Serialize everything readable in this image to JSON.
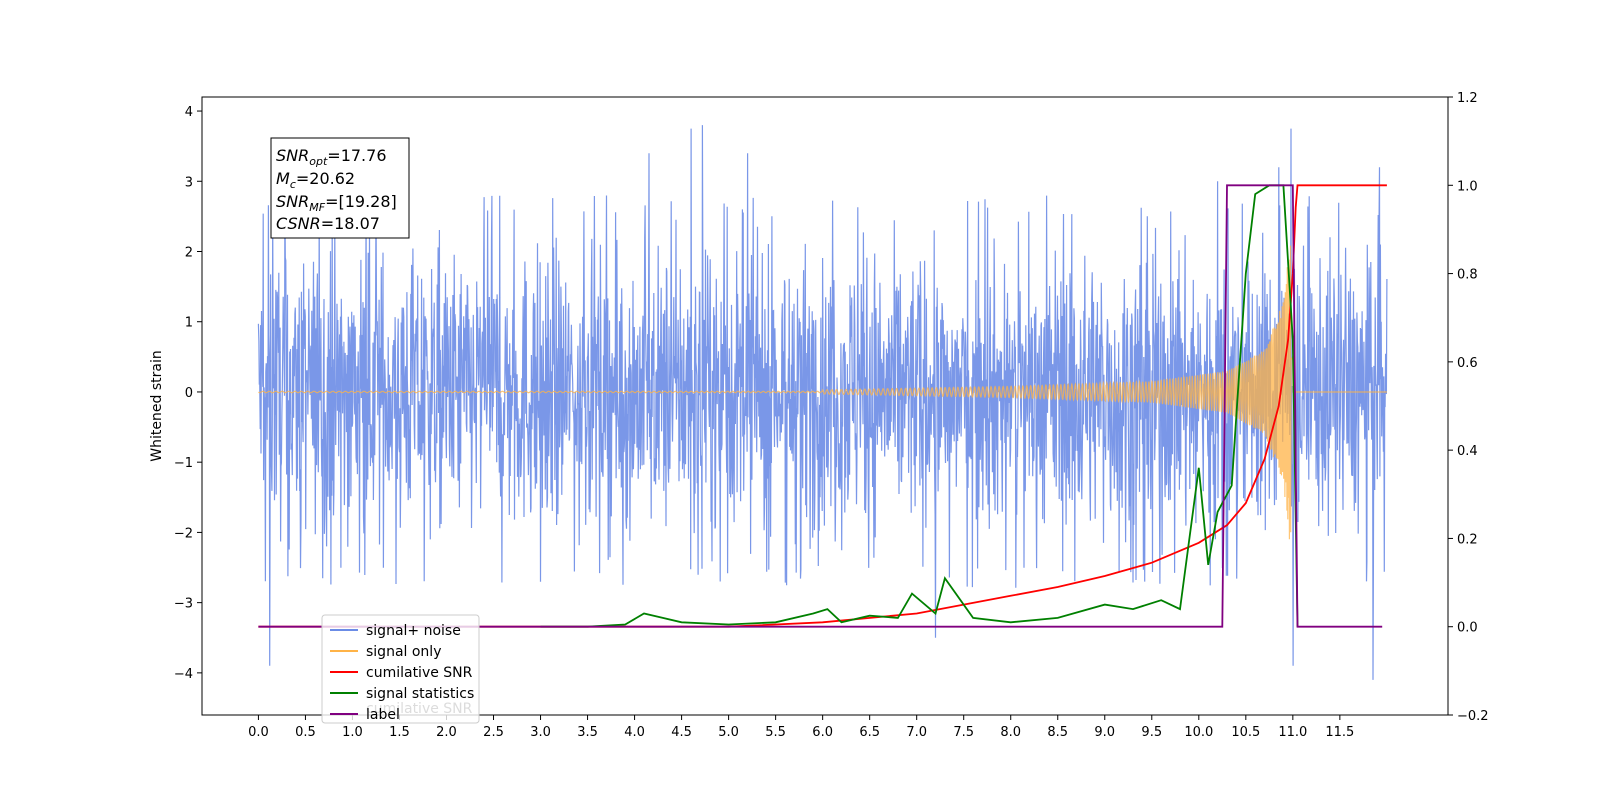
{
  "chart_data": {
    "type": "line",
    "ylabel": "Whitened strain",
    "x_ticks": [
      "0.0",
      "0.5",
      "1.0",
      "1.5",
      "2.0",
      "2.5",
      "3.0",
      "3.5",
      "4.0",
      "4.5",
      "5.0",
      "5.5",
      "6.0",
      "6.5",
      "7.0",
      "7.5",
      "8.0",
      "8.5",
      "9.0",
      "9.5",
      "10.0",
      "10.5",
      "11.0",
      "11.5"
    ],
    "xlim": [
      -0.6,
      12.65
    ],
    "y_left_ticks": [
      "4",
      "3",
      "2",
      "1",
      "0",
      "−1",
      "−2",
      "−3",
      "−4"
    ],
    "ylim_left": [
      -4.6,
      4.2
    ],
    "y_right_ticks": [
      "1.2",
      "1.0",
      "0.8",
      "0.6",
      "0.4",
      "0.2",
      "0.0",
      "−0.2"
    ],
    "ylim_right": [
      -0.2,
      1.2
    ],
    "annotation": {
      "snr_opt": {
        "sym": "SNR",
        "sub": "opt",
        "value": "=17.76"
      },
      "mc": {
        "sym": "M",
        "sub": "c",
        "value": "=20.62"
      },
      "snr_mf": {
        "sym": "SNR",
        "sub": "MF",
        "value": "=[19.28]"
      },
      "csnr": {
        "sym": "CSNR",
        "value": "=18.07"
      }
    },
    "legend": {
      "placement": "lower-left",
      "entries": [
        {
          "label": "signal+ noise",
          "color": "#6b8ce6"
        },
        {
          "label": "signal only",
          "color": "#ffb347"
        },
        {
          "label": "cumilative SNR",
          "color": "#ff0000"
        },
        {
          "label": "signal statistics",
          "color": "#008000"
        },
        {
          "label": "label",
          "color": "#800080"
        }
      ],
      "ghost_text": "cumilative SNR"
    },
    "series": [
      {
        "name": "signal+ noise",
        "axis": "left",
        "color": "#6b8ce6",
        "representation": "random noise in about ±2.6 with spikes; tallest points listed",
        "band_amplitude": 2.5,
        "t_start": 0.0,
        "t_end": 12.0,
        "spikes": [
          [
            0.12,
            -3.9
          ],
          [
            0.15,
            2.6
          ],
          [
            4.15,
            3.4
          ],
          [
            4.6,
            3.75
          ],
          [
            4.72,
            3.8
          ],
          [
            5.2,
            3.4
          ],
          [
            7.2,
            -3.5
          ],
          [
            7.05,
            -0.8
          ],
          [
            10.2,
            3.0
          ],
          [
            10.85,
            3.2
          ],
          [
            10.98,
            3.75
          ],
          [
            11.0,
            -3.9
          ],
          [
            11.85,
            -4.1
          ],
          [
            11.92,
            3.2
          ]
        ]
      },
      {
        "name": "signal only",
        "axis": "left",
        "color": "#ffb347",
        "representation": "chirp centred on 0, envelope grows toward merger near 11.0",
        "t_start": 0.0,
        "t_merger": 11.0,
        "t_end": 12.0,
        "envelope": [
          [
            6.0,
            0.03
          ],
          [
            8.0,
            0.08
          ],
          [
            9.5,
            0.15
          ],
          [
            10.3,
            0.3
          ],
          [
            10.7,
            0.6
          ],
          [
            10.9,
            1.3
          ],
          [
            11.0,
            2.6
          ]
        ]
      },
      {
        "name": "cumilative SNR",
        "axis": "right",
        "color": "#ff0000",
        "points": [
          [
            0.0,
            0.0
          ],
          [
            5.0,
            0.0
          ],
          [
            6.0,
            0.01
          ],
          [
            7.0,
            0.03
          ],
          [
            8.0,
            0.07
          ],
          [
            8.5,
            0.09
          ],
          [
            9.0,
            0.115
          ],
          [
            9.5,
            0.145
          ],
          [
            10.0,
            0.19
          ],
          [
            10.3,
            0.23
          ],
          [
            10.5,
            0.28
          ],
          [
            10.7,
            0.38
          ],
          [
            10.85,
            0.5
          ],
          [
            10.95,
            0.65
          ],
          [
            11.0,
            0.8
          ],
          [
            11.03,
            0.95
          ],
          [
            11.05,
            1.0
          ],
          [
            12.0,
            1.0
          ]
        ]
      },
      {
        "name": "signal statistics",
        "axis": "right",
        "color": "#008000",
        "points": [
          [
            3.0,
            0.0
          ],
          [
            3.5,
            0.0
          ],
          [
            3.9,
            0.005
          ],
          [
            4.1,
            0.03
          ],
          [
            4.3,
            0.02
          ],
          [
            4.5,
            0.01
          ],
          [
            5.0,
            0.005
          ],
          [
            5.5,
            0.01
          ],
          [
            5.9,
            0.03
          ],
          [
            6.05,
            0.04
          ],
          [
            6.2,
            0.01
          ],
          [
            6.5,
            0.025
          ],
          [
            6.8,
            0.02
          ],
          [
            6.95,
            0.075
          ],
          [
            7.2,
            0.03
          ],
          [
            7.3,
            0.11
          ],
          [
            7.6,
            0.02
          ],
          [
            8.0,
            0.01
          ],
          [
            8.5,
            0.02
          ],
          [
            9.0,
            0.05
          ],
          [
            9.3,
            0.04
          ],
          [
            9.6,
            0.06
          ],
          [
            9.8,
            0.04
          ],
          [
            10.0,
            0.36
          ],
          [
            10.1,
            0.14
          ],
          [
            10.2,
            0.26
          ],
          [
            10.35,
            0.32
          ],
          [
            10.5,
            0.8
          ],
          [
            10.6,
            0.98
          ],
          [
            10.75,
            1.0
          ],
          [
            10.9,
            1.0
          ],
          [
            11.0,
            0.65
          ],
          [
            11.05,
            0.0
          ]
        ]
      },
      {
        "name": "label",
        "axis": "right",
        "color": "#800080",
        "points": [
          [
            0.0,
            0.0
          ],
          [
            10.25,
            0.0
          ],
          [
            10.3,
            1.0
          ],
          [
            11.0,
            1.0
          ],
          [
            11.05,
            0.0
          ],
          [
            11.95,
            0.0
          ]
        ]
      }
    ]
  }
}
